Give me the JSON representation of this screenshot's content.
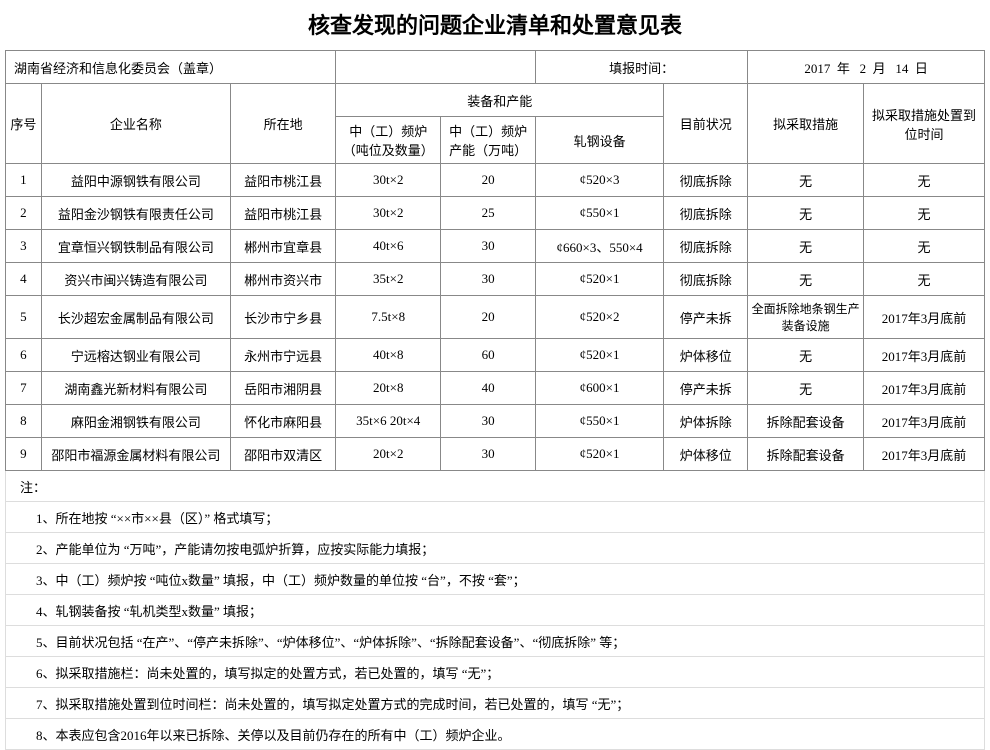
{
  "title": "核查发现的问题企业清单和处置意见表",
  "info": {
    "org": "湖南省经济和信息化委员会（盖章）",
    "fill_label": "填报时间：",
    "date_year_label": "年",
    "date_month_label": "月",
    "date_day_label": "日",
    "year": "2017",
    "month": "2",
    "day": "14"
  },
  "headers": {
    "seq": "序号",
    "company": "企业名称",
    "location": "所在地",
    "equip_group": "装备和产能",
    "equip1": "中（工）频炉（吨位及数量）",
    "equip2": "中（工）频炉产能（万吨）",
    "equip3": "轧钢设备",
    "status": "目前状况",
    "measure": "拟采取措施",
    "deadline": "拟采取措施处置到位时间"
  },
  "rows": [
    {
      "seq": "1",
      "company": "益阳中源钢铁有限公司",
      "location": "益阳市桃江县",
      "eq1": "30t×2",
      "eq2": "20",
      "eq3": "¢520×3",
      "status": "彻底拆除",
      "measure": "无",
      "deadline": "无"
    },
    {
      "seq": "2",
      "company": "益阳金沙钢铁有限责任公司",
      "location": "益阳市桃江县",
      "eq1": "30t×2",
      "eq2": "25",
      "eq3": "¢550×1",
      "status": "彻底拆除",
      "measure": "无",
      "deadline": "无"
    },
    {
      "seq": "3",
      "company": "宜章恒兴钢铁制品有限公司",
      "location": "郴州市宜章县",
      "eq1": "40t×6",
      "eq2": "30",
      "eq3": "¢660×3、550×4",
      "status": "彻底拆除",
      "measure": "无",
      "deadline": "无"
    },
    {
      "seq": "4",
      "company": "资兴市闽兴铸造有限公司",
      "location": "郴州市资兴市",
      "eq1": "35t×2",
      "eq2": "30",
      "eq3": "¢520×1",
      "status": "彻底拆除",
      "measure": "无",
      "deadline": "无"
    },
    {
      "seq": "5",
      "company": "长沙超宏金属制品有限公司",
      "location": "长沙市宁乡县",
      "eq1": "7.5t×8",
      "eq2": "20",
      "eq3": "¢520×2",
      "status": "停产未拆",
      "measure": "全面拆除地条钢生产装备设施",
      "deadline": "2017年3月底前"
    },
    {
      "seq": "6",
      "company": "宁远榕达钢业有限公司",
      "location": "永州市宁远县",
      "eq1": "40t×8",
      "eq2": "60",
      "eq3": "¢520×1",
      "status": "炉体移位",
      "measure": "无",
      "deadline": "2017年3月底前"
    },
    {
      "seq": "7",
      "company": "湖南鑫光新材料有限公司",
      "location": "岳阳市湘阴县",
      "eq1": "20t×8",
      "eq2": "40",
      "eq3": "¢600×1",
      "status": "停产未拆",
      "measure": "无",
      "deadline": "2017年3月底前"
    },
    {
      "seq": "8",
      "company": "麻阳金湘钢铁有限公司",
      "location": "怀化市麻阳县",
      "eq1": "35t×6 20t×4",
      "eq2": "30",
      "eq3": "¢550×1",
      "status": "炉体拆除",
      "measure": "拆除配套设备",
      "deadline": "2017年3月底前"
    },
    {
      "seq": "9",
      "company": "邵阳市福源金属材料有限公司",
      "location": "邵阳市双清区",
      "eq1": "20t×2",
      "eq2": "30",
      "eq3": "¢520×1",
      "status": "炉体移位",
      "measure": "拆除配套设备",
      "deadline": "2017年3月底前"
    }
  ],
  "notes_label": "注：",
  "notes": [
    "1、所在地按 “××市××县（区）” 格式填写；",
    "2、产能单位为 “万吨”，产能请勿按电弧炉折算，应按实际能力填报；",
    "3、中（工）频炉按 “吨位x数量” 填报，中（工）频炉数量的单位按 “台”，不按 “套”；",
    "4、轧钢装备按 “轧机类型x数量” 填报；",
    "5、目前状况包括 “在产”、“停产未拆除”、“炉体移位”、“炉体拆除”、“拆除配套设备”、“彻底拆除” 等；",
    "6、拟采取措施栏：尚未处置的，填写拟定的处置方式，若已处置的，填写 “无”；",
    "7、拟采取措施处置到位时间栏：尚未处置的，填写拟定处置方式的完成时间，若已处置的，填写 “无”；",
    "8、本表应包含2016年以来已拆除、关停以及目前仍存在的所有中（工）频炉企业。"
  ]
}
